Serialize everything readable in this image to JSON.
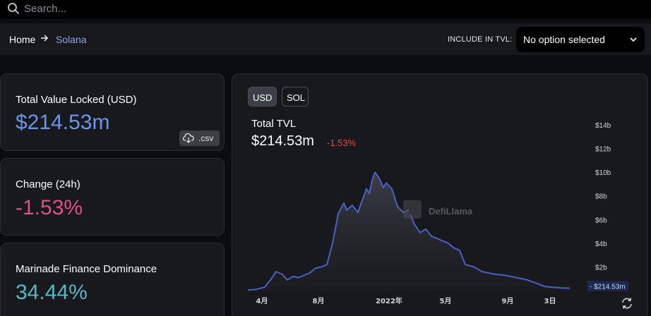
{
  "search": {
    "placeholder": "Search..."
  },
  "breadcrumb": {
    "home": "Home",
    "current": "Solana"
  },
  "tvl_filter": {
    "label": "INCLUDE IN TVL:",
    "selected": "No option selected"
  },
  "cards": {
    "tvl": {
      "label": "Total Value Locked (USD)",
      "value": "$214.53m",
      "csv_label": ".csv"
    },
    "change": {
      "label": "Change (24h)",
      "value": "-1.53%"
    },
    "dominance": {
      "label": "Marinade Finance Dominance",
      "value": "34.44%"
    }
  },
  "chart_panel": {
    "toggle_usd": "USD",
    "toggle_sol": "SOL",
    "title": "Total TVL",
    "value": "$214.53m",
    "change": "-1.53%",
    "watermark": "DefiLlama"
  },
  "colors": {
    "line": "#4b60c4",
    "accent_blue": "#6d95e8",
    "negative": "#e04e8a",
    "teal": "#5ab6c4"
  },
  "chart_data": {
    "type": "area",
    "title": "",
    "ylim": [
      0,
      14
    ],
    "y_unit": "b",
    "y_ticks": [
      {
        "v": 2,
        "label": "$2b"
      },
      {
        "v": 4,
        "label": "$4b"
      },
      {
        "v": 6,
        "label": "$6b"
      },
      {
        "v": 8,
        "label": "$8b"
      },
      {
        "v": 10,
        "label": "$10b"
      },
      {
        "v": 12,
        "label": "$12b"
      },
      {
        "v": 14,
        "label": "$14b"
      }
    ],
    "x_ticks": [
      {
        "t": 0.2,
        "label": "4月"
      },
      {
        "t": 2.2,
        "label": "8月"
      },
      {
        "t": 4.7,
        "label": "2022年"
      },
      {
        "t": 6.7,
        "label": "5月"
      },
      {
        "t": 8.9,
        "label": "9月"
      },
      {
        "t": 10.4,
        "label": "3日"
      }
    ],
    "xlim": [
      -0.3,
      11.7
    ],
    "current_label": "$214.53m",
    "current_value": 0.21,
    "values": [
      [
        -0.3,
        0.05
      ],
      [
        0.0,
        0.1
      ],
      [
        0.3,
        0.3
      ],
      [
        0.5,
        0.9
      ],
      [
        0.7,
        1.6
      ],
      [
        0.9,
        1.4
      ],
      [
        1.1,
        0.9
      ],
      [
        1.3,
        1.2
      ],
      [
        1.5,
        1.1
      ],
      [
        1.7,
        1.3
      ],
      [
        1.9,
        1.5
      ],
      [
        2.1,
        1.9
      ],
      [
        2.3,
        2.0
      ],
      [
        2.5,
        2.2
      ],
      [
        2.7,
        4.0
      ],
      [
        2.9,
        6.5
      ],
      [
        3.1,
        7.4
      ],
      [
        3.2,
        6.8
      ],
      [
        3.4,
        7.2
      ],
      [
        3.6,
        6.6
      ],
      [
        3.7,
        7.3
      ],
      [
        3.9,
        8.6
      ],
      [
        4.0,
        8.2
      ],
      [
        4.1,
        9.3
      ],
      [
        4.2,
        10.0
      ],
      [
        4.35,
        9.5
      ],
      [
        4.5,
        8.7
      ],
      [
        4.6,
        9.1
      ],
      [
        4.8,
        8.6
      ],
      [
        5.0,
        7.1
      ],
      [
        5.2,
        6.6
      ],
      [
        5.4,
        6.8
      ],
      [
        5.6,
        5.6
      ],
      [
        5.8,
        4.9
      ],
      [
        6.0,
        5.2
      ],
      [
        6.2,
        4.6
      ],
      [
        6.5,
        4.3
      ],
      [
        6.8,
        4.0
      ],
      [
        7.0,
        3.6
      ],
      [
        7.2,
        3.4
      ],
      [
        7.4,
        2.2
      ],
      [
        7.7,
        2.0
      ],
      [
        8.0,
        1.6
      ],
      [
        8.4,
        1.4
      ],
      [
        8.8,
        1.3
      ],
      [
        9.2,
        1.1
      ],
      [
        9.6,
        0.9
      ],
      [
        10.0,
        0.55
      ],
      [
        10.2,
        0.35
      ],
      [
        10.5,
        0.28
      ],
      [
        10.8,
        0.22
      ],
      [
        11.1,
        0.21
      ]
    ]
  }
}
